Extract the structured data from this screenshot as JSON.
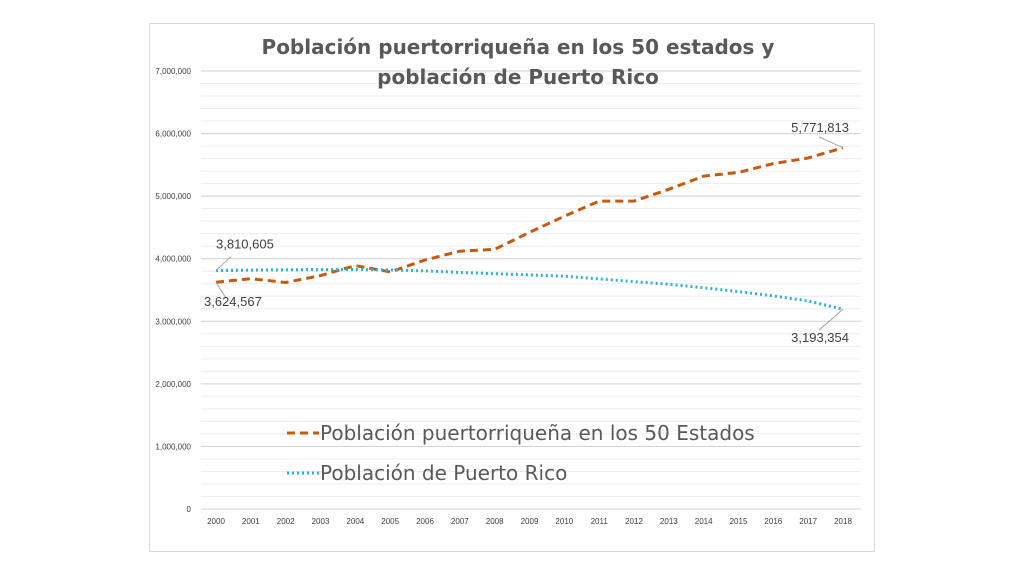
{
  "chart_data": {
    "type": "line",
    "title_lines": [
      "Población puertorriqueña en los 50 estados y",
      "población de Puerto Rico"
    ],
    "xlabel": "",
    "ylabel": "",
    "ylim": [
      0,
      7000000
    ],
    "y_ticks": [
      "0",
      "1,000,000",
      "2,000,000",
      "3,000,000",
      "4,000,000",
      "5,000,000",
      "6,000,000",
      "7,000,000"
    ],
    "y_tick_values": [
      0,
      1000000,
      2000000,
      3000000,
      4000000,
      5000000,
      6000000,
      7000000
    ],
    "x": [
      "2000",
      "2001",
      "2002",
      "2003",
      "2004",
      "2005",
      "2006",
      "2007",
      "2008",
      "2009",
      "2010",
      "2011",
      "2012",
      "2013",
      "2014",
      "2015",
      "2016",
      "2017",
      "2018"
    ],
    "gridlines": true,
    "legend_position": "center-bottom",
    "series": [
      {
        "name": "Población puertorriqueña en los 50 Estados",
        "color": "#c55a11",
        "style": "dashed",
        "values": [
          3624567,
          3680000,
          3620000,
          3730000,
          3890000,
          3790000,
          3980000,
          4120000,
          4150000,
          4420000,
          4680000,
          4920000,
          4920000,
          5110000,
          5320000,
          5380000,
          5520000,
          5610000,
          5771813
        ]
      },
      {
        "name": "Población de Puerto Rico",
        "color": "#2ab3d6",
        "style": "dotted",
        "values": [
          3810605,
          3818000,
          3823000,
          3826000,
          3826000,
          3821000,
          3805000,
          3782000,
          3760000,
          3741000,
          3721000,
          3678000,
          3634000,
          3593000,
          3535000,
          3474000,
          3406000,
          3325000,
          3193354
        ]
      }
    ],
    "annotations": [
      {
        "text": "3,810,605",
        "series": 1,
        "index": 0
      },
      {
        "text": "3,624,567",
        "series": 0,
        "index": 0
      },
      {
        "text": "5,771,813",
        "series": 0,
        "index": 18
      },
      {
        "text": "3,193,354",
        "series": 1,
        "index": 18
      }
    ]
  }
}
